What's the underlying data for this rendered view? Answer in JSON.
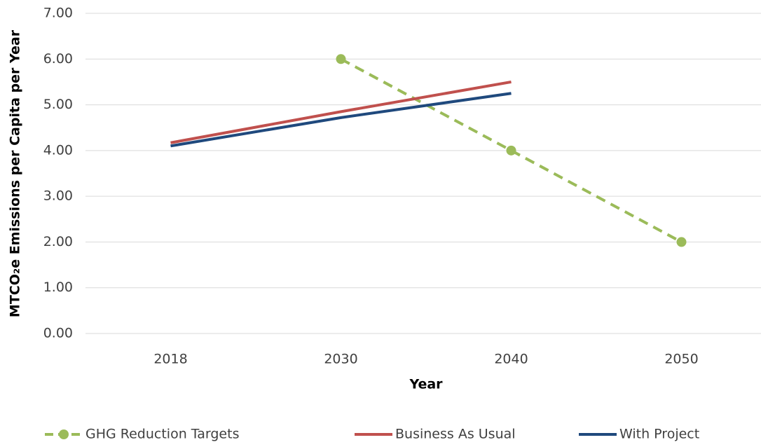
{
  "chart_data": {
    "type": "line",
    "x_label": "Year",
    "y_label": "MTCO₂e Emissions per Capita per Year",
    "categories": [
      "2018",
      "2030",
      "2040",
      "2050"
    ],
    "series": [
      {
        "name": "GHG Reduction Targets",
        "color": "#9bbb59",
        "dashed": true,
        "markers": true,
        "values": [
          null,
          6,
          4,
          2
        ]
      },
      {
        "name": "Business As Usual",
        "color": "#c0504d",
        "dashed": false,
        "markers": false,
        "values": [
          4.17,
          4.85,
          5.5,
          null
        ]
      },
      {
        "name": "With Project",
        "color": "#1f497d",
        "dashed": false,
        "markers": false,
        "values": [
          4.1,
          4.72,
          5.25,
          null
        ]
      }
    ],
    "ylim": [
      0,
      7
    ],
    "yticks": [
      {
        "value": 0,
        "label": "0.00"
      },
      {
        "value": 1,
        "label": "1.00"
      },
      {
        "value": 2,
        "label": "2.00"
      },
      {
        "value": 3,
        "label": "3.00"
      },
      {
        "value": 4,
        "label": "4.00"
      },
      {
        "value": 5,
        "label": "5.00"
      },
      {
        "value": 6,
        "label": "6.00"
      },
      {
        "value": 7,
        "label": "7.00"
      }
    ],
    "grid": true
  }
}
